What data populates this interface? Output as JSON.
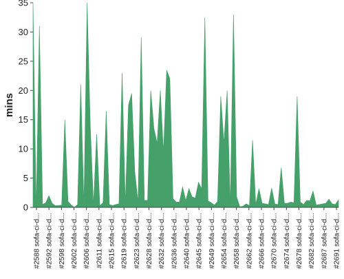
{
  "chart_data": {
    "type": "area",
    "title": "",
    "xlabel": "",
    "ylabel": "mins",
    "ylim": [
      0,
      35
    ],
    "yticks": [
      0,
      5,
      10,
      15,
      20,
      25,
      30,
      35
    ],
    "grid": false,
    "legend": "none",
    "color": "#45a06a",
    "x_tick_labels": [
      "#2588 sofa-ci-d...",
      "#2592 sofa-ci-d...",
      "#2598 sofa-ci-d...",
      "#2602 sofa-ci-d...",
      "#2606 sofa-ci-d...",
      "#2611 sofa-ci-d...",
      "#2615 sofa-ci-d...",
      "#2619 sofa-ci-d...",
      "#2623 sofa-ci-d...",
      "#2628 sofa-ci-d...",
      "#2632 sofa-ci-d...",
      "#2636 sofa-ci-d...",
      "#2640 sofa-ci-d...",
      "#2645 sofa-ci-d...",
      "#2649 sofa-ci-d...",
      "#2654 sofa-ci-d...",
      "#2658 sofa-ci-d...",
      "#2662 sofa-ci-d...",
      "#2666 sofa-ci-d...",
      "#2670 sofa-ci-d...",
      "#2674 sofa-ci-d...",
      "#2678 sofa-ci-d...",
      "#2682 sofa-ci-d...",
      "#2687 sofa-ci-d...",
      "#2691 sofa-ci-d..."
    ],
    "values": [
      35,
      0,
      31,
      0.5,
      0.8,
      2,
      0.7,
      0.3,
      0.3,
      0.4,
      15,
      1,
      0.4,
      0,
      0.5,
      21,
      0.5,
      35,
      14,
      0.5,
      12.5,
      0.3,
      0.8,
      16.5,
      0.5,
      0.3,
      0.5,
      0.6,
      23,
      0.8,
      17.5,
      19.5,
      6,
      1,
      29,
      1.2,
      1.2,
      20,
      13.5,
      11,
      20,
      9.5,
      23.5,
      22,
      1.5,
      0.9,
      0.9,
      3.5,
      1.2,
      3.2,
      1.8,
      1.6,
      4.3,
      3.2,
      32.5,
      1.1,
      0.8,
      0.4,
      1,
      19,
      11,
      20,
      0.6,
      33,
      1.8,
      0.1,
      0.2,
      0.6,
      0.3,
      11.5,
      0.5,
      3.2,
      0.7,
      0.6,
      0.5,
      3.3,
      0.6,
      0.5,
      6.8,
      0.7,
      0.7,
      0.9,
      0.8,
      19,
      0.9,
      0.5,
      1.2,
      1.1,
      2.8,
      0.4,
      0.5,
      0.6,
      0.7,
      1.4,
      0.6,
      0.5,
      1.3
    ]
  }
}
